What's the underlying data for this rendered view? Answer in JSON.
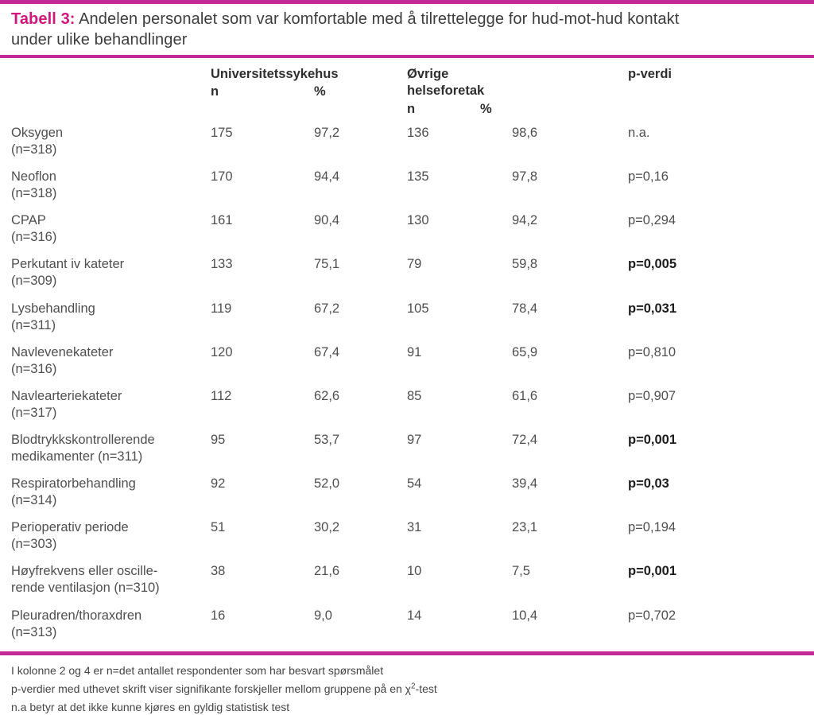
{
  "colors": {
    "accent_pink_title": "#d4157e",
    "rule_pink": "#c42a97",
    "body_text": "#4f4f4f",
    "header_text": "#2e2e2e",
    "bold_pvalue_text": "#1c1c1c"
  },
  "title": {
    "label": "Tabell 3:",
    "line1": " Andelen personalet som var komfortable med å tilrettelegge for hud-mot-hud kontakt",
    "line2": "under ulike behandlinger"
  },
  "header": {
    "group1": "Universitetssykehus",
    "group1_n": "n",
    "group1_pct": "%",
    "group2": "Øvrige helseforetak",
    "group2_n": "n",
    "group2_pct": "%",
    "pvalue": "p-verdi"
  },
  "table": {
    "rows": [
      {
        "line1": "Oksygen",
        "line2": "(n=318)",
        "n1": "175",
        "pct1": "97,2",
        "n2": "136",
        "pct2": "98,6",
        "p": "n.a.",
        "p_bold": false
      },
      {
        "line1": "Neoflon",
        "line2": "(n=318)",
        "n1": "170",
        "pct1": "94,4",
        "n2": "135",
        "pct2": "97,8",
        "p": "p=0,16",
        "p_bold": false
      },
      {
        "line1": "CPAP",
        "line2": "(n=316)",
        "n1": "161",
        "pct1": "90,4",
        "n2": "130",
        "pct2": "94,2",
        "p": "p=0,294",
        "p_bold": false
      },
      {
        "line1": "Perkutant iv kateter",
        "line2": "(n=309)",
        "n1": "133",
        "pct1": "75,1",
        "n2": "79",
        "pct2": "59,8",
        "p": "p=0,005",
        "p_bold": true
      },
      {
        "line1": "Lysbehandling",
        "line2": "(n=311)",
        "n1": "119",
        "pct1": "67,2",
        "n2": "105",
        "pct2": "78,4",
        "p": "p=0,031",
        "p_bold": true
      },
      {
        "line1": "Navlevenekateter",
        "line2": "(n=316)",
        "n1": "120",
        "pct1": "67,4",
        "n2": "91",
        "pct2": "65,9",
        "p": "p=0,810",
        "p_bold": false
      },
      {
        "line1": "Navlearteriekateter",
        "line2": "(n=317)",
        "n1": "112",
        "pct1": "62,6",
        "n2": "85",
        "pct2": "61,6",
        "p": "p=0,907",
        "p_bold": false
      },
      {
        "line1": "Blodtrykkskontrollerende",
        "line2": "medikamenter (n=311)",
        "n1": "95",
        "pct1": "53,7",
        "n2": "97",
        "pct2": "72,4",
        "p": "p=0,001",
        "p_bold": true
      },
      {
        "line1": "Respiratorbehandling",
        "line2": "(n=314)",
        "n1": "92",
        "pct1": "52,0",
        "n2": "54",
        "pct2": "39,4",
        "p": "p=0,03",
        "p_bold": true
      },
      {
        "line1": "Perioperativ periode",
        "line2": "(n=303)",
        "n1": "51",
        "pct1": "30,2",
        "n2": "31",
        "pct2": "23,1",
        "p": "p=0,194",
        "p_bold": false
      },
      {
        "line1": "Høyfrekvens eller oscille-",
        "line2": "rende ventilasjon (n=310)",
        "n1": "38",
        "pct1": "21,6",
        "n2": "10",
        "pct2": "7,5",
        "p": "p=0,001",
        "p_bold": true
      },
      {
        "line1": "Pleuradren/thoraxdren",
        "line2": "(n=313)",
        "n1": "16",
        "pct1": "9,0",
        "n2": "14",
        "pct2": "10,4",
        "p": "p=0,702",
        "p_bold": false
      }
    ]
  },
  "footnotes": {
    "line1": "I kolonne 2 og 4 er n=det antallet respondenter som har besvart spørsmålet",
    "line2_pre": "p-verdier med uthevet skrift viser signifikante forskjeller mellom gruppene på en χ",
    "line2_sup": "2",
    "line2_post": "-test",
    "line3": "n.a betyr at det ikke kunne kjøres en gyldig statistisk test"
  }
}
